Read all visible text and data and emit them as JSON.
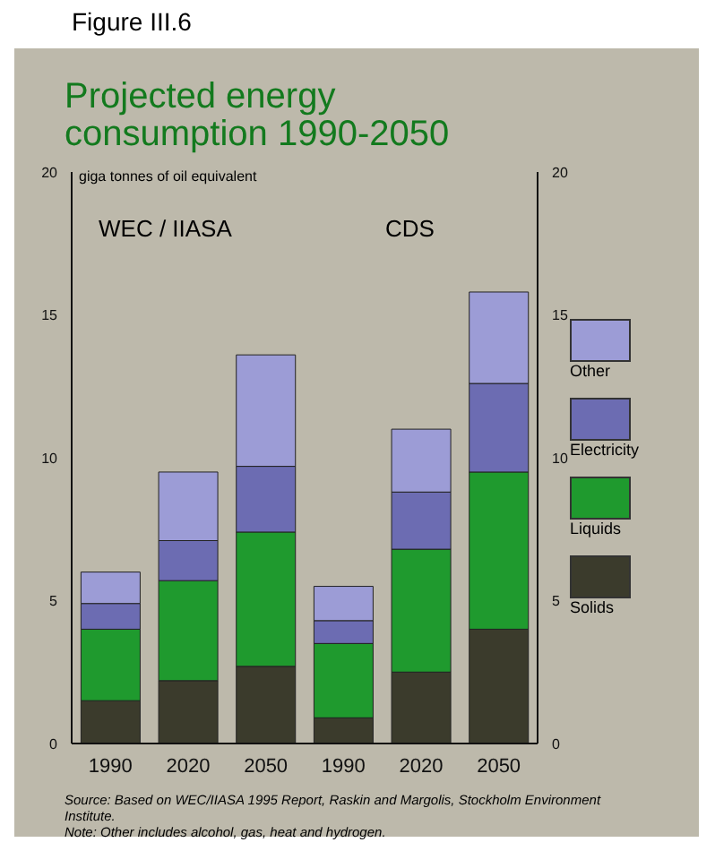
{
  "chart_data": {
    "type": "bar",
    "title": "Projected energy consumption 1990-2050",
    "ylabel": "giga tonnes of oil equivalent",
    "annotations": [
      "Figure III.6",
      "WEC / IIASA",
      "CDS",
      "Source: Based on WEC/IIASA 1995 Report, Raskin and Margolis, Stockholm Environment Institute.",
      "Note: Other includes alcohol, gas, heat and hydrogen."
    ],
    "categories": [
      "1990",
      "2020",
      "2050",
      "1990",
      "2020",
      "2050"
    ],
    "stacked": true,
    "series": [
      {
        "name": "Solids",
        "color": "#3b3b2c",
        "values": [
          1.5,
          2.2,
          2.7,
          0.9,
          2.5,
          4.0
        ]
      },
      {
        "name": "Liquids",
        "color": "#1f9a2e",
        "values": [
          2.5,
          3.5,
          4.7,
          2.6,
          4.3,
          5.5
        ]
      },
      {
        "name": "Electricity",
        "color": "#6c6cb2",
        "values": [
          0.9,
          1.4,
          2.3,
          0.8,
          2.0,
          3.1
        ]
      },
      {
        "name": "Other",
        "color": "#9c9cd6",
        "values": [
          1.1,
          2.4,
          3.9,
          1.2,
          2.2,
          3.2
        ]
      }
    ],
    "ylim": [
      0,
      20
    ],
    "yticks": [
      0,
      5,
      10,
      15,
      20
    ],
    "y2lim": [
      0,
      20
    ],
    "y2ticks": [
      0,
      5,
      10,
      15,
      20
    ],
    "grid": false,
    "legend": "right"
  }
}
